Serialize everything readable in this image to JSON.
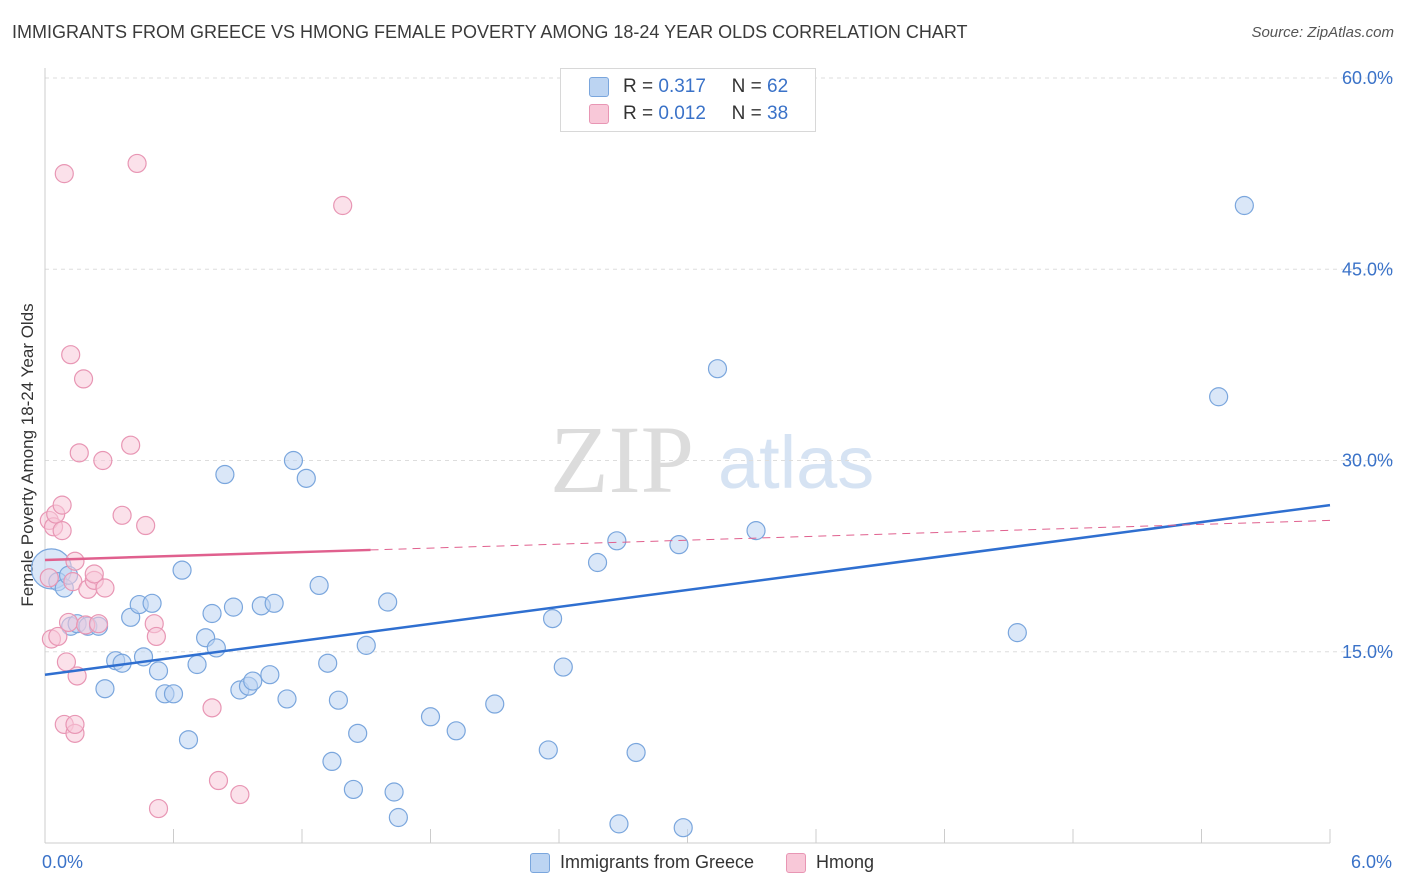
{
  "chart_data": {
    "type": "scatter",
    "title": "IMMIGRANTS FROM GREECE VS HMONG FEMALE POVERTY AMONG 18-24 YEAR OLDS CORRELATION CHART",
    "source": "Source: ZipAtlas.com",
    "xlabel": "",
    "ylabel": "Female Poverty Among 18-24 Year Olds",
    "xlim": [
      0,
      6
    ],
    "ylim": [
      0,
      60
    ],
    "x_tick_labels": {
      "min": "0.0%",
      "max": "6.0%"
    },
    "y_ticks": [
      {
        "value": 15,
        "label": "15.0%"
      },
      {
        "value": 30,
        "label": "30.0%"
      },
      {
        "value": 45,
        "label": "45.0%"
      },
      {
        "value": 60,
        "label": "60.0%"
      }
    ],
    "grid": true,
    "legend_position": "top-center",
    "watermark": {
      "zip": "ZIP",
      "atlas": "atlas"
    },
    "series": [
      {
        "name": "Immigrants from Greece",
        "color": "#7aa6dd",
        "fill": "#bcd4f2",
        "line_color": "#2f6fd0",
        "R": "0.317",
        "N": "62",
        "trend": {
          "x0": 0,
          "y0": 13.2,
          "x1": 6.0,
          "y1": 26.5,
          "dashed_from": null
        },
        "points": [
          [
            0.03,
            21.5
          ],
          [
            0.06,
            20.5
          ],
          [
            0.09,
            20.0
          ],
          [
            0.11,
            21.0
          ],
          [
            0.12,
            17.0
          ],
          [
            0.15,
            17.2
          ],
          [
            0.2,
            17.0
          ],
          [
            0.25,
            17.0
          ],
          [
            0.28,
            12.1
          ],
          [
            0.33,
            14.3
          ],
          [
            0.36,
            14.1
          ],
          [
            0.4,
            17.7
          ],
          [
            0.44,
            18.7
          ],
          [
            0.46,
            14.6
          ],
          [
            0.5,
            18.8
          ],
          [
            0.53,
            13.5
          ],
          [
            0.56,
            11.7
          ],
          [
            0.6,
            11.7
          ],
          [
            0.64,
            21.4
          ],
          [
            0.67,
            8.1
          ],
          [
            0.71,
            14.0
          ],
          [
            0.75,
            16.1
          ],
          [
            0.78,
            18.0
          ],
          [
            0.8,
            15.3
          ],
          [
            0.84,
            28.9
          ],
          [
            0.88,
            18.5
          ],
          [
            0.91,
            12.0
          ],
          [
            0.95,
            12.3
          ],
          [
            0.97,
            12.7
          ],
          [
            1.01,
            18.6
          ],
          [
            1.05,
            13.2
          ],
          [
            1.07,
            18.8
          ],
          [
            1.13,
            11.3
          ],
          [
            1.16,
            30.0
          ],
          [
            1.22,
            28.6
          ],
          [
            1.28,
            20.2
          ],
          [
            1.32,
            14.1
          ],
          [
            1.34,
            6.4
          ],
          [
            1.37,
            11.2
          ],
          [
            1.44,
            4.2
          ],
          [
            1.46,
            8.6
          ],
          [
            1.5,
            15.5
          ],
          [
            1.6,
            18.9
          ],
          [
            1.63,
            4.0
          ],
          [
            1.65,
            2.0
          ],
          [
            1.8,
            9.9
          ],
          [
            1.92,
            8.8
          ],
          [
            2.1,
            10.9
          ],
          [
            2.35,
            7.3
          ],
          [
            2.37,
            17.6
          ],
          [
            2.42,
            13.8
          ],
          [
            2.58,
            22.0
          ],
          [
            2.67,
            23.7
          ],
          [
            2.68,
            1.5
          ],
          [
            2.76,
            7.1
          ],
          [
            2.96,
            23.4
          ],
          [
            2.98,
            1.2
          ],
          [
            3.14,
            37.2
          ],
          [
            3.32,
            24.5
          ],
          [
            4.54,
            16.5
          ],
          [
            5.48,
            35.0
          ],
          [
            5.6,
            50.0
          ]
        ]
      },
      {
        "name": "Hmong",
        "color": "#e896b4",
        "fill": "#f8c8d8",
        "line_color": "#e0608e",
        "R": "0.012",
        "N": "38",
        "trend": {
          "x0": 0,
          "y0": 22.2,
          "x1": 6.0,
          "y1": 25.3,
          "dashed_from": 1.52
        },
        "points": [
          [
            0.02,
            25.3
          ],
          [
            0.03,
            16.0
          ],
          [
            0.04,
            24.8
          ],
          [
            0.05,
            25.8
          ],
          [
            0.06,
            16.2
          ],
          [
            0.08,
            24.5
          ],
          [
            0.08,
            26.5
          ],
          [
            0.09,
            9.3
          ],
          [
            0.09,
            52.5
          ],
          [
            0.1,
            14.2
          ],
          [
            0.11,
            17.3
          ],
          [
            0.12,
            38.3
          ],
          [
            0.13,
            20.5
          ],
          [
            0.14,
            8.6
          ],
          [
            0.14,
            9.3
          ],
          [
            0.14,
            22.1
          ],
          [
            0.15,
            13.1
          ],
          [
            0.16,
            30.6
          ],
          [
            0.18,
            36.4
          ],
          [
            0.19,
            17.1
          ],
          [
            0.2,
            19.9
          ],
          [
            0.23,
            20.6
          ],
          [
            0.23,
            21.1
          ],
          [
            0.25,
            17.2
          ],
          [
            0.27,
            30.0
          ],
          [
            0.28,
            20.0
          ],
          [
            0.36,
            25.7
          ],
          [
            0.4,
            31.2
          ],
          [
            0.43,
            53.3
          ],
          [
            0.47,
            24.9
          ],
          [
            0.51,
            17.2
          ],
          [
            0.52,
            16.2
          ],
          [
            0.53,
            2.7
          ],
          [
            0.78,
            10.6
          ],
          [
            0.81,
            4.9
          ],
          [
            0.91,
            3.8
          ],
          [
            1.39,
            50.0
          ],
          [
            0.02,
            20.8
          ]
        ]
      }
    ]
  }
}
